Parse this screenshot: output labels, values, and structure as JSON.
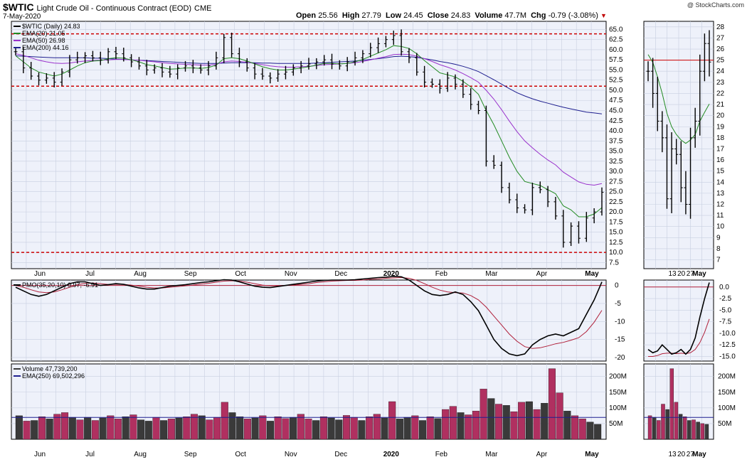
{
  "header": {
    "symbol": "$WTIC",
    "name": "Light Crude Oil - Continuous Contract (EOD)",
    "exchange": "CME",
    "date": "7-May-2020",
    "brand": "@ StockCharts.com",
    "open_label": "Open",
    "open": "25.56",
    "high_label": "High",
    "high": "27.79",
    "low_label": "Low",
    "low": "24.45",
    "close_label": "Close",
    "close": "24.83",
    "volume_label": "Volume",
    "volume": "47.7M",
    "chg_label": "Chg",
    "chg": "-0.79 (-3.08%)"
  },
  "colors": {
    "up_bar": "#000000",
    "ema20": "#228b22",
    "ema50": "#9932cc",
    "ema200": "#1f1f8f",
    "support_line": "#cc0000",
    "pmo": "#000000",
    "pmo_signal": "#b0203a",
    "vol_up": "#b03060",
    "vol_down": "#3a3a3a",
    "grid": "#c8cfe0",
    "panel_bg": "#eef1fa"
  },
  "chart_data": [
    {
      "type": "line",
      "panel": "price",
      "legend": [
        "$WTIC (Daily) 24.83",
        "EMA(20) 21.05",
        "EMA(50) 26.98",
        "EMA(200) 44.16"
      ],
      "x_ticks": [
        "Jun",
        "Jul",
        "Aug",
        "Sep",
        "Oct",
        "Nov",
        "Dec",
        "2020",
        "Feb",
        "Mar",
        "Apr",
        "May"
      ],
      "y_ticks": [
        "65.0",
        "62.5",
        "60.0",
        "57.5",
        "55.0",
        "52.5",
        "50.0",
        "47.5",
        "45.0",
        "42.5",
        "40.0",
        "37.5",
        "35.0",
        "32.5",
        "30.0",
        "27.5",
        "25.0",
        "22.5",
        "20.0",
        "17.5",
        "15.0",
        "12.5",
        "10.0",
        "7.5"
      ],
      "ylim": [
        6,
        67
      ],
      "support_levels": [
        63.9,
        51.0,
        10.0
      ],
      "series": [
        {
          "name": "$WTIC (Daily) 24.83",
          "values": [
            59.5,
            55.5,
            53.5,
            52.5,
            53.0,
            52.0,
            54.5,
            57.5,
            58.0,
            58.5,
            58.0,
            57.5,
            59.5,
            59.0,
            58.0,
            57.0,
            56.0,
            55.0,
            55.5,
            54.5,
            54.0,
            55.5,
            56.0,
            55.5,
            55.0,
            56.0,
            58.0,
            63.0,
            59.0,
            57.0,
            55.5,
            54.0,
            53.5,
            53.0,
            54.0,
            54.5,
            55.5,
            56.0,
            56.5,
            57.0,
            57.5,
            56.5,
            56.0,
            57.0,
            58.0,
            59.0,
            60.5,
            61.5,
            62.5,
            63.5,
            59.5,
            58.0,
            54.5,
            52.0,
            51.5,
            50.5,
            53.0,
            51.5,
            49.0,
            46.5,
            45.0,
            32.5,
            31.5,
            26.0,
            23.0,
            21.0,
            20.5,
            26.0,
            25.5,
            22.5,
            19.0,
            12.5,
            16.5,
            13.5,
            18.5,
            20.0,
            24.83
          ]
        },
        {
          "name": "EMA(20) 21.05",
          "values": [
            58.5,
            57.0,
            55.5,
            54.5,
            54.0,
            53.5,
            54.0,
            55.0,
            56.0,
            56.8,
            57.2,
            57.3,
            57.8,
            58.0,
            57.9,
            57.5,
            57.0,
            56.3,
            56.0,
            55.6,
            55.2,
            55.3,
            55.5,
            55.5,
            55.4,
            55.6,
            56.2,
            57.8,
            58.0,
            57.8,
            57.2,
            56.5,
            55.8,
            55.3,
            55.0,
            55.0,
            55.2,
            55.5,
            55.8,
            56.2,
            56.6,
            56.6,
            56.5,
            56.6,
            57.0,
            57.6,
            58.4,
            59.2,
            60.0,
            61.0,
            60.8,
            60.3,
            59.0,
            57.3,
            55.8,
            54.3,
            53.8,
            53.3,
            52.2,
            50.8,
            49.0,
            45.0,
            41.5,
            37.5,
            33.5,
            30.0,
            27.5,
            27.0,
            26.5,
            25.5,
            24.5,
            21.5,
            20.5,
            18.8,
            18.8,
            19.5,
            21.05
          ]
        },
        {
          "name": "EMA(50) 26.98",
          "values": [
            59.0,
            58.6,
            58.0,
            57.4,
            57.0,
            56.7,
            56.6,
            56.7,
            57.0,
            57.2,
            57.3,
            57.4,
            57.5,
            57.6,
            57.6,
            57.5,
            57.4,
            57.2,
            57.0,
            56.8,
            56.6,
            56.5,
            56.4,
            56.3,
            56.2,
            56.2,
            56.4,
            57.0,
            57.2,
            57.1,
            56.9,
            56.6,
            56.3,
            56.0,
            55.8,
            55.7,
            55.7,
            55.8,
            55.9,
            56.1,
            56.3,
            56.4,
            56.5,
            56.6,
            56.8,
            57.1,
            57.5,
            57.9,
            58.3,
            58.8,
            58.9,
            58.8,
            58.4,
            57.8,
            57.1,
            56.3,
            55.7,
            55.0,
            54.1,
            53.1,
            52.0,
            50.0,
            47.8,
            45.2,
            42.4,
            39.8,
            37.5,
            35.8,
            34.2,
            32.8,
            31.6,
            29.8,
            28.6,
            27.4,
            26.8,
            26.6,
            26.98
          ]
        },
        {
          "name": "EMA(200) 44.16",
          "values": [
            58.5,
            58.4,
            58.3,
            58.2,
            58.1,
            58.0,
            58.0,
            58.0,
            58.0,
            58.0,
            57.9,
            57.9,
            57.8,
            57.7,
            57.6,
            57.5,
            57.4,
            57.3,
            57.2,
            57.1,
            57.0,
            56.9,
            56.8,
            56.7,
            56.6,
            56.6,
            56.6,
            56.7,
            56.8,
            56.8,
            56.8,
            56.8,
            56.7,
            56.7,
            56.6,
            56.6,
            56.6,
            56.6,
            56.6,
            56.7,
            56.8,
            56.9,
            57.0,
            57.1,
            57.2,
            57.4,
            57.6,
            57.8,
            58.0,
            58.3,
            58.4,
            58.3,
            58.1,
            57.8,
            57.5,
            57.1,
            56.8,
            56.4,
            55.9,
            55.3,
            54.6,
            53.6,
            52.6,
            51.5,
            50.4,
            49.4,
            48.6,
            47.9,
            47.3,
            46.8,
            46.3,
            45.8,
            45.4,
            45.0,
            44.6,
            44.4,
            44.16
          ]
        }
      ]
    },
    {
      "type": "line",
      "panel": "price-zoom",
      "x_ticks": [
        "13",
        "20",
        "27",
        "May"
      ],
      "y_ticks": [
        "28",
        "27",
        "26",
        "25",
        "24",
        "23",
        "22",
        "21",
        "20",
        "19",
        "18",
        "17",
        "16",
        "15",
        "14",
        "13",
        "12",
        "11",
        "10",
        "9",
        "8",
        "7"
      ],
      "ylim": [
        6.2,
        28.5
      ],
      "support_levels": [
        25.0
      ],
      "series": [
        {
          "name": "Price",
          "values": [
            24.0,
            22.0,
            19.5,
            18.0,
            12.5,
            17.0,
            16.5,
            13.5,
            12.0,
            18.0,
            19.5,
            24.0,
            26.5,
            24.83
          ]
        },
        {
          "name": "EMA(20)",
          "values": [
            25.5,
            24.8,
            23.5,
            22.0,
            20.2,
            19.0,
            18.3,
            17.8,
            17.5,
            17.8,
            18.3,
            19.5,
            20.3,
            21.05
          ]
        }
      ]
    },
    {
      "type": "line",
      "panel": "pmo",
      "legend": [
        "PMO(35,20,10) 0.97, -6.91"
      ],
      "y_ticks": [
        "0",
        "-5",
        "-10",
        "-15",
        "-20"
      ],
      "ylim": [
        -21,
        1.5
      ],
      "zero_line": 0,
      "series": [
        {
          "name": "PMO(35,20,10) 0.97",
          "values": [
            -0.5,
            -1.5,
            -2.5,
            -3.0,
            -2.5,
            -1.5,
            -0.5,
            0.5,
            1.0,
            1.0,
            0.5,
            0.0,
            0.2,
            0.5,
            0.3,
            -0.2,
            -0.7,
            -1.0,
            -1.0,
            -0.6,
            -0.2,
            0.0,
            0.2,
            0.5,
            0.8,
            1.0,
            1.3,
            1.6,
            1.5,
            1.0,
            0.4,
            -0.2,
            -0.5,
            -0.6,
            -0.3,
            0.0,
            0.3,
            0.6,
            0.9,
            1.2,
            1.4,
            1.5,
            1.5,
            1.5,
            1.6,
            1.8,
            2.0,
            2.2,
            2.3,
            2.5,
            2.4,
            1.5,
            0.0,
            -1.5,
            -2.5,
            -2.8,
            -2.5,
            -1.8,
            -2.5,
            -4.5,
            -7.0,
            -11.0,
            -15.0,
            -17.5,
            -19.0,
            -19.5,
            -19.0,
            -16.5,
            -15.0,
            -14.0,
            -13.5,
            -14.0,
            -13.0,
            -12.0,
            -8.0,
            -4.0,
            0.97
          ]
        },
        {
          "name": "Signal -6.91",
          "values": [
            0.0,
            -0.5,
            -1.2,
            -1.8,
            -2.0,
            -1.8,
            -1.2,
            -0.5,
            0.2,
            0.6,
            0.7,
            0.5,
            0.3,
            0.3,
            0.3,
            0.1,
            -0.2,
            -0.5,
            -0.7,
            -0.7,
            -0.5,
            -0.3,
            -0.1,
            0.1,
            0.4,
            0.6,
            0.9,
            1.2,
            1.3,
            1.2,
            0.9,
            0.5,
            0.1,
            -0.1,
            -0.1,
            0.0,
            0.1,
            0.3,
            0.5,
            0.8,
            1.0,
            1.2,
            1.3,
            1.4,
            1.4,
            1.5,
            1.7,
            1.8,
            2.0,
            2.1,
            2.2,
            2.0,
            1.4,
            0.5,
            -0.5,
            -1.3,
            -1.8,
            -2.0,
            -2.1,
            -2.8,
            -4.0,
            -6.0,
            -8.5,
            -11.0,
            -13.5,
            -15.5,
            -17.0,
            -17.5,
            -17.3,
            -16.8,
            -16.2,
            -15.8,
            -15.2,
            -14.5,
            -12.8,
            -10.2,
            -6.91
          ]
        }
      ]
    },
    {
      "type": "line",
      "panel": "pmo-zoom",
      "y_ticks": [
        "0.0",
        "-2.5",
        "-5.0",
        "-7.5",
        "-10.0",
        "-12.5",
        "-15.0"
      ],
      "ylim": [
        -16,
        1.5
      ],
      "zero_line": 0,
      "series": [
        {
          "name": "PMO",
          "values": [
            -13.5,
            -14.2,
            -13.8,
            -12.5,
            -13.5,
            -14.5,
            -14.2,
            -13.5,
            -14.5,
            -13.5,
            -11.0,
            -6.5,
            -2.5,
            0.97
          ]
        },
        {
          "name": "Signal",
          "values": [
            -15.0,
            -15.0,
            -14.8,
            -14.4,
            -14.3,
            -14.3,
            -14.4,
            -14.3,
            -14.4,
            -14.2,
            -13.5,
            -12.0,
            -9.8,
            -6.91
          ]
        }
      ]
    },
    {
      "type": "bar",
      "panel": "volume",
      "legend": [
        "Volume 47,739,200",
        "EMA(250) 69,502,296"
      ],
      "y_ticks": [
        "200M",
        "150M",
        "100M",
        "50M"
      ],
      "ylim": [
        0,
        240
      ],
      "unit": "M",
      "values": [
        75,
        58,
        60,
        72,
        65,
        80,
        85,
        70,
        62,
        70,
        60,
        68,
        75,
        65,
        72,
        78,
        62,
        58,
        70,
        60,
        65,
        68,
        72,
        80,
        75,
        62,
        70,
        118,
        85,
        72,
        65,
        68,
        75,
        58,
        72,
        66,
        70,
        80,
        65,
        60,
        72,
        68,
        62,
        76,
        70,
        60,
        72,
        80,
        68,
        120,
        65,
        70,
        75,
        60,
        72,
        66,
        95,
        105,
        85,
        78,
        90,
        160,
        130,
        112,
        108,
        88,
        118,
        120,
        95,
        115,
        225,
        148,
        90,
        75,
        65,
        55,
        47.7
      ],
      "up_flags": [
        0,
        1,
        0,
        1,
        0,
        1,
        1,
        0,
        1,
        0,
        1,
        0,
        1,
        1,
        0,
        1,
        0,
        0,
        1,
        0,
        1,
        0,
        1,
        1,
        0,
        1,
        1,
        1,
        0,
        0,
        1,
        0,
        1,
        0,
        1,
        1,
        0,
        1,
        1,
        0,
        1,
        0,
        0,
        1,
        1,
        0,
        1,
        1,
        0,
        1,
        0,
        0,
        1,
        0,
        1,
        0,
        1,
        1,
        0,
        1,
        1,
        1,
        0,
        1,
        0,
        1,
        1,
        0,
        1,
        0,
        1,
        1,
        0,
        1,
        1,
        0,
        0
      ],
      "ema": 69.5
    },
    {
      "type": "bar",
      "panel": "volume-zoom",
      "y_ticks": [
        "200M",
        "150M",
        "100M",
        "50M"
      ],
      "ylim": [
        0,
        240
      ],
      "unit": "M",
      "x_ticks": [
        "13",
        "20",
        "27",
        "May"
      ],
      "values": [
        75,
        70,
        60,
        112,
        95,
        225,
        118,
        80,
        72,
        60,
        62,
        55,
        50,
        47.7
      ],
      "up_flags": [
        1,
        0,
        1,
        1,
        0,
        1,
        1,
        0,
        1,
        0,
        1,
        0,
        1,
        0
      ],
      "ema": 69.5
    }
  ]
}
